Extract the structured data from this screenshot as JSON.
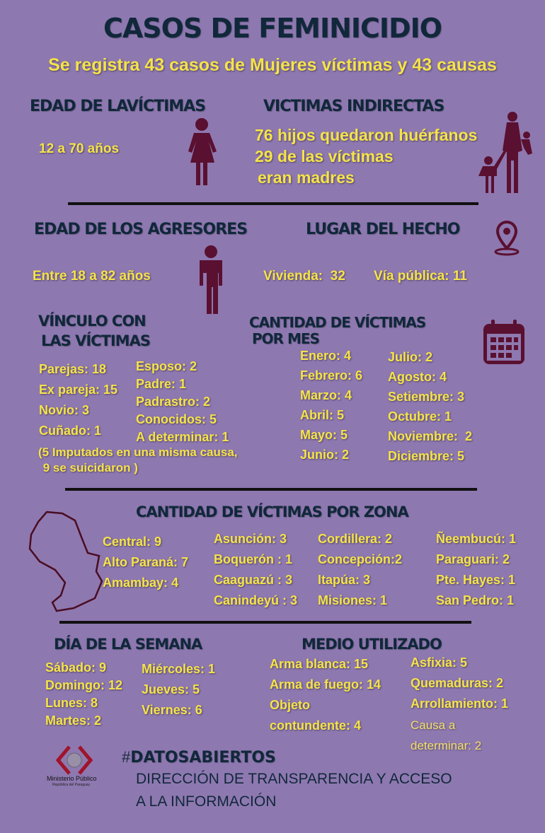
{
  "title": "CASOS DE FEMINICIDIO",
  "subtitle": "Se registra 43 casos de Mujeres víctimas y 43 causas",
  "edad_victimas": {
    "heading": "EDAD DE LAVÍCTIMAS",
    "value": "12 a 70 años"
  },
  "victimas_indirectas": {
    "heading": "VICTIMAS INDIRECTAS",
    "lines": [
      "76 hijos quedaron huérfanos",
      "29 de las víctimas",
      "eran madres"
    ]
  },
  "edad_agresores": {
    "heading": "EDAD DE  LOS AGRESORES",
    "value": "Entre 18 a  82 años"
  },
  "lugar": {
    "heading": "LUGAR DEL HECHO",
    "vivienda": "Vivienda:  32",
    "via": "Vía pública: 11"
  },
  "vinculo": {
    "heading1": "VÍNCULO CON",
    "heading2": "LAS VÍCTIMAS",
    "col1": [
      "Parejas: 18",
      "Ex pareja: 15",
      "Novio: 3",
      "Cuñado: 1"
    ],
    "col2": [
      "Esposo: 2",
      "Padre: 1",
      "Padrastro: 2",
      "Conocidos: 5",
      "A determinar: 1"
    ],
    "note1": "(5 Imputados en una misma causa,",
    "note2": " 9 se suicidaron )"
  },
  "por_mes": {
    "heading1": "CANTIDAD DE VÍCTIMAS",
    "heading2": "POR MES",
    "col1": [
      "Enero: 4",
      "Febrero: 6",
      "Marzo: 4",
      "Abril: 5",
      "Mayo: 5",
      "Junio: 2"
    ],
    "col2": [
      "Julio: 2",
      "Agosto: 4",
      "Setiembre: 3",
      "Octubre: 1",
      "Noviembre:  2",
      "Diciembre: 5"
    ]
  },
  "por_zona": {
    "heading": "CANTIDAD DE VÍCTIMAS POR ZONA",
    "col1": [
      "Central: 9",
      "Alto Paraná: 7",
      "Amambay: 4"
    ],
    "col2": [
      "Asunción: 3",
      "Boquerón : 1",
      "Caaguazú : 3",
      "Canindeyú : 3"
    ],
    "col3": [
      "Cordillera: 2",
      "Concepción:2",
      "Itapúa: 3",
      "Misiones: 1"
    ],
    "col4": [
      "Ñeembucú: 1",
      "Paraguari: 2",
      "Pte. Hayes: 1",
      "San Pedro: 1"
    ]
  },
  "dia_semana": {
    "heading": "DÍA DE LA SEMANA",
    "col1": [
      "Sábado: 9",
      "Domingo: 12",
      "Lunes: 8",
      "Martes: 2"
    ],
    "col2": [
      "Miércoles: 1",
      "Jueves: 5",
      "Viernes: 6"
    ]
  },
  "medio": {
    "heading": "MEDIO UTILIZADO",
    "col1": [
      "Arma blanca: 15",
      "Arma de fuego: 14",
      "Objeto",
      "contundente: 4"
    ],
    "col2": [
      "Asfixia: 5",
      "Quemaduras: 2",
      "Arrollamiento: 1"
    ],
    "col2b": [
      "Causa a",
      "determinar: 2"
    ]
  },
  "footer": {
    "hashtag_prefix": "#",
    "hashtag": "DATOSABIERTOS",
    "line1": "DIRECCIÓN DE TRANSPARENCIA Y ACCESO",
    "line2": "A LA INFORMACIÓN",
    "logo_name": "Ministerio Público",
    "logo_sub": "República del Paraguay"
  },
  "colors": {
    "background": "#8e78b0",
    "heading": "#10283a",
    "values": "#f5e34a",
    "icons": "#5a1030"
  }
}
